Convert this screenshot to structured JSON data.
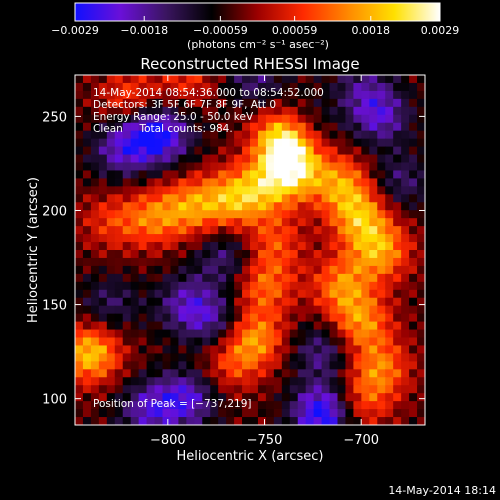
{
  "chart_data": {
    "type": "heatmap",
    "title": "Reconstructed RHESSI Image",
    "xlabel": "Heliocentric X (arcsec)",
    "ylabel": "Heliocentric Y (arcsec)",
    "xlim": [
      -848,
      -667
    ],
    "ylim": [
      86,
      272
    ],
    "x_ticks": [
      -800,
      -750,
      -700
    ],
    "x_tick_labels": [
      "−800",
      "−750",
      "−700"
    ],
    "y_ticks": [
      100,
      150,
      200,
      250
    ],
    "y_tick_labels": [
      "100",
      "150",
      "200",
      "250"
    ],
    "colorbar": {
      "min": -0.0029,
      "max": 0.0029,
      "tick_values": [
        -0.0029,
        -0.0018,
        -0.00059,
        0.00059,
        0.0018,
        0.0029
      ],
      "tick_labels": [
        "−0.0029",
        "−0.0018",
        "−0.00059",
        "0.00059",
        "0.0018",
        "0.0029"
      ],
      "unit_label": "(photons cm⁻² s⁻¹ asec⁻²)",
      "colors": [
        "#1010ff",
        "#6a10d8",
        "#3a1560",
        "#000000",
        "#9c0000",
        "#ff2a00",
        "#ff8a00",
        "#ffe000",
        "#ffffff"
      ]
    },
    "annotations": [
      "14-May-2014 08:54:36.000 to 08:54:52.000",
      "Detectors: 3F 5F 6F 7F 8F 9F, Att 0",
      "Energy Range: 25.0 - 50.0 keV",
      "Clean     Total counts: 984."
    ],
    "peak_label": "Position of Peak = [−737,219]",
    "peak": {
      "x": -737,
      "y": 219
    },
    "sources": [
      {
        "x": -740,
        "y": 238,
        "value": 0.0029
      },
      {
        "x": -735,
        "y": 222,
        "value": 0.0024
      },
      {
        "x": -750,
        "y": 212,
        "value": 0.0016
      },
      {
        "x": -767,
        "y": 206,
        "value": 0.0019
      },
      {
        "x": -788,
        "y": 202,
        "value": 0.0017
      },
      {
        "x": -808,
        "y": 196,
        "value": 0.0015
      },
      {
        "x": -830,
        "y": 194,
        "value": 0.001
      },
      {
        "x": -745,
        "y": 183,
        "value": 0.0012
      },
      {
        "x": -750,
        "y": 160,
        "value": 0.0015
      },
      {
        "x": -755,
        "y": 132,
        "value": 0.0019
      },
      {
        "x": -768,
        "y": 118,
        "value": 0.0011
      },
      {
        "x": -710,
        "y": 214,
        "value": 0.0018
      },
      {
        "x": -700,
        "y": 196,
        "value": 0.002
      },
      {
        "x": -690,
        "y": 178,
        "value": 0.0019
      },
      {
        "x": -710,
        "y": 160,
        "value": 0.0017
      },
      {
        "x": -700,
        "y": 140,
        "value": 0.0018
      },
      {
        "x": -690,
        "y": 116,
        "value": 0.0016
      },
      {
        "x": -700,
        "y": 98,
        "value": 0.0012
      },
      {
        "x": -820,
        "y": 260,
        "value": 0.0012
      },
      {
        "x": -790,
        "y": 270,
        "value": 0.001
      },
      {
        "x": -840,
        "y": 124,
        "value": 0.0024
      },
      {
        "x": -810,
        "y": 94,
        "value": -0.0016
      },
      {
        "x": -790,
        "y": 100,
        "value": -0.0018
      },
      {
        "x": -720,
        "y": 92,
        "value": -0.0026
      },
      {
        "x": -790,
        "y": 150,
        "value": -0.0015
      },
      {
        "x": -775,
        "y": 140,
        "value": -0.0012
      },
      {
        "x": -825,
        "y": 232,
        "value": -0.0014
      },
      {
        "x": -810,
        "y": 240,
        "value": -0.0016
      },
      {
        "x": -800,
        "y": 240,
        "value": -0.0012
      },
      {
        "x": -690,
        "y": 250,
        "value": -0.0016
      },
      {
        "x": -700,
        "y": 265,
        "value": -0.001
      },
      {
        "x": -680,
        "y": 215,
        "value": -0.0011
      },
      {
        "x": -770,
        "y": 175,
        "value": -0.0012
      },
      {
        "x": -730,
        "y": 245,
        "value": -0.0008
      },
      {
        "x": -720,
        "y": 125,
        "value": -0.0013
      },
      {
        "x": -755,
        "y": 270,
        "value": -0.0011
      },
      {
        "x": -830,
        "y": 150,
        "value": -0.001
      }
    ]
  },
  "footer": {
    "timestamp": "14-May-2014 18:14"
  }
}
